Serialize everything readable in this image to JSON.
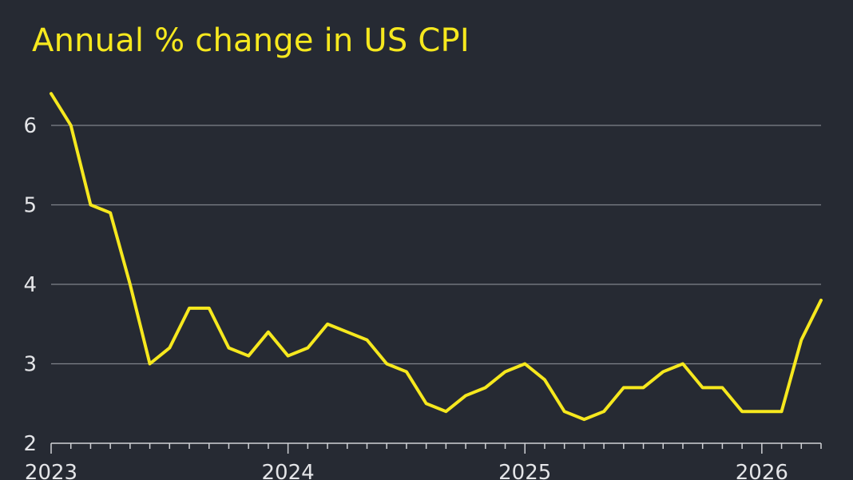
{
  "chart_data": {
    "type": "line",
    "title": "Annual % change in US CPI",
    "xlabel": "",
    "ylabel": "",
    "ylim": [
      2,
      6.5
    ],
    "yticks": [
      2,
      3,
      4,
      5,
      6
    ],
    "xlim": [
      "2023-01",
      "2026-04"
    ],
    "xticks": [
      {
        "x": "2023-01",
        "label": "2023"
      },
      {
        "x": "2024-01",
        "label": "2024"
      },
      {
        "x": "2025-01",
        "label": "2025"
      },
      {
        "x": "2026-01",
        "label": "2026"
      }
    ],
    "grid": true,
    "legend": "none",
    "colors": {
      "background": "#262a33",
      "line": "#f6e81e",
      "grid": "#80838b",
      "axis": "#d0d2d6",
      "text": "#e4e5e8",
      "title": "#f6e81e"
    },
    "series": [
      {
        "x": [
          "2023-01",
          "2023-02",
          "2023-03",
          "2023-04",
          "2023-05",
          "2023-06",
          "2023-07",
          "2023-08",
          "2023-09",
          "2023-10",
          "2023-11",
          "2023-12",
          "2024-01",
          "2024-02",
          "2024-03",
          "2024-04",
          "2024-05",
          "2024-06",
          "2024-07",
          "2024-08",
          "2024-09",
          "2024-10",
          "2024-11",
          "2024-12",
          "2025-01",
          "2025-02",
          "2025-03",
          "2025-04",
          "2025-05",
          "2025-06",
          "2025-07",
          "2025-08",
          "2025-09",
          "2025-10",
          "2025-11",
          "2025-12",
          "2026-01",
          "2026-02",
          "2026-03",
          "2026-04"
        ],
        "values": [
          6.4,
          6.0,
          5.0,
          4.9,
          4.0,
          3.0,
          3.2,
          3.7,
          3.7,
          3.2,
          3.1,
          3.4,
          3.1,
          3.2,
          3.5,
          3.4,
          3.3,
          3.0,
          2.9,
          2.5,
          2.4,
          2.6,
          2.7,
          2.9,
          3.0,
          2.8,
          2.4,
          2.3,
          2.4,
          2.7,
          2.7,
          2.9,
          3.0,
          2.7,
          2.7,
          2.4,
          2.4,
          2.4,
          3.3,
          3.8
        ]
      }
    ]
  }
}
